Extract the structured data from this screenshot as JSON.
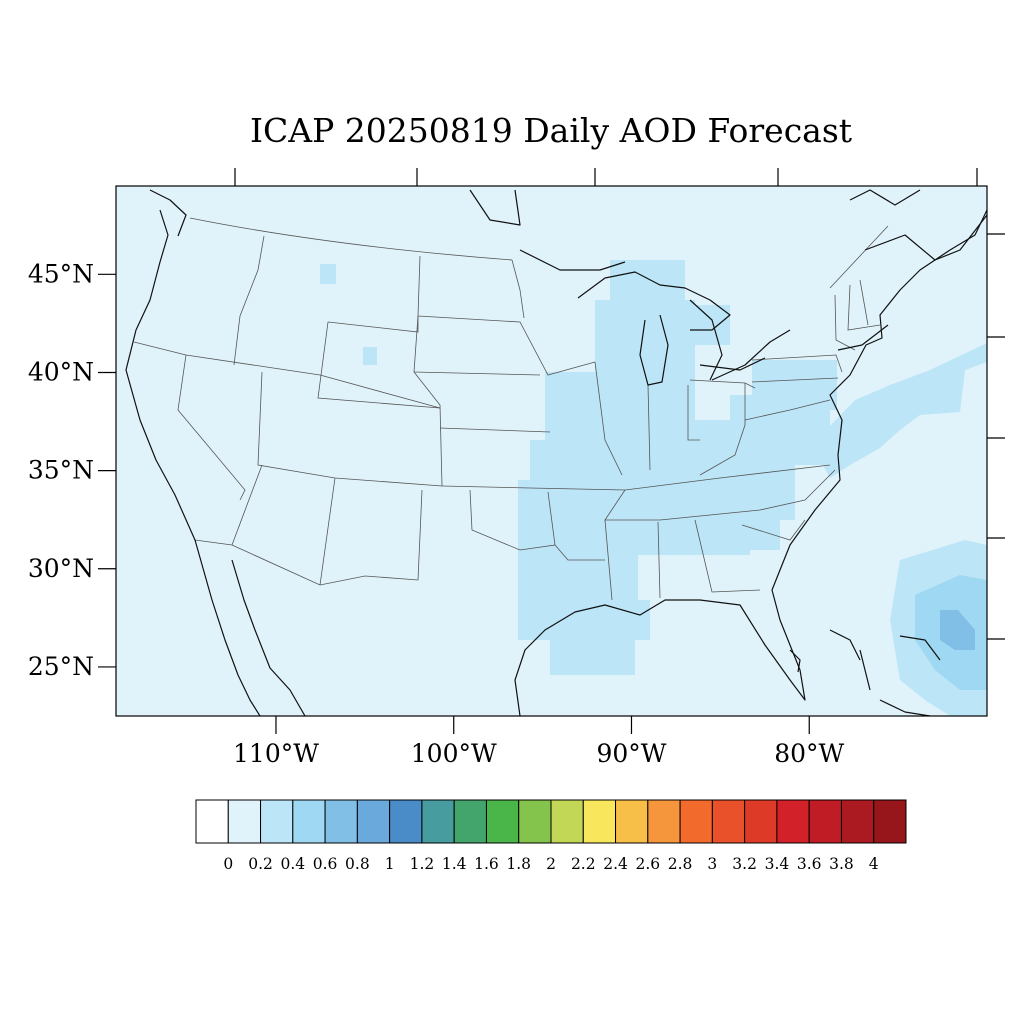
{
  "title": "ICAP 20250819 Daily AOD Forecast",
  "colors": {
    "background": "#e0f3fb",
    "land_line": "#555555",
    "coast_line": "#111111",
    "frame": "#000000"
  },
  "map": {
    "lon_range": [
      -119,
      -70
    ],
    "lat_range": [
      22.5,
      49.5
    ],
    "lat_ticks": [
      {
        "value": 45,
        "label": "45°N"
      },
      {
        "value": 40,
        "label": "40°N"
      },
      {
        "value": 35,
        "label": "35°N"
      },
      {
        "value": 30,
        "label": "30°N"
      },
      {
        "value": 25,
        "label": "25°N"
      }
    ],
    "lon_ticks": [
      {
        "value": -110,
        "label": "110°W"
      },
      {
        "value": -100,
        "label": "100°W"
      },
      {
        "value": -90,
        "label": "90°W"
      },
      {
        "value": -80,
        "label": "80°W"
      }
    ]
  },
  "colorbar": {
    "boxes": [
      "#ffffff",
      "#e0f3fb",
      "#bce5f7",
      "#9fd8f2",
      "#82bfe6",
      "#6aa9dc",
      "#4a8cc8",
      "#469c9e",
      "#44a56c",
      "#4ab548",
      "#84c44c",
      "#c2d756",
      "#f8e75c",
      "#f8bf48",
      "#f6963c",
      "#f26a2c",
      "#e8512a",
      "#dd3b27",
      "#d22128",
      "#c01c25",
      "#ac1a21",
      "#96161b"
    ],
    "labels": [
      "0",
      "0.2",
      "0.4",
      "0.6",
      "0.8",
      "1",
      "1.2",
      "1.4",
      "1.6",
      "1.8",
      "2",
      "2.2",
      "2.4",
      "2.6",
      "2.8",
      "3",
      "3.2",
      "3.4",
      "3.6",
      "3.8",
      "4"
    ]
  },
  "aod_regions": [
    {
      "name": "mississippi-valley-plume",
      "aod": 0.4
    },
    {
      "name": "great-lakes-plume",
      "aod": 0.4
    },
    {
      "name": "appalachian-plume",
      "aod": 0.4
    },
    {
      "name": "gulf-coast-plume",
      "aod": 0.4
    },
    {
      "name": "atlantic-offshore-band",
      "aod": 0.4
    },
    {
      "name": "bahamas-plume",
      "aod": 0.6
    },
    {
      "name": "bahamas-core",
      "aod": 0.8
    },
    {
      "name": "montana-spot",
      "aod": 0.4
    },
    {
      "name": "wyoming-spot",
      "aod": 0.4
    }
  ]
}
